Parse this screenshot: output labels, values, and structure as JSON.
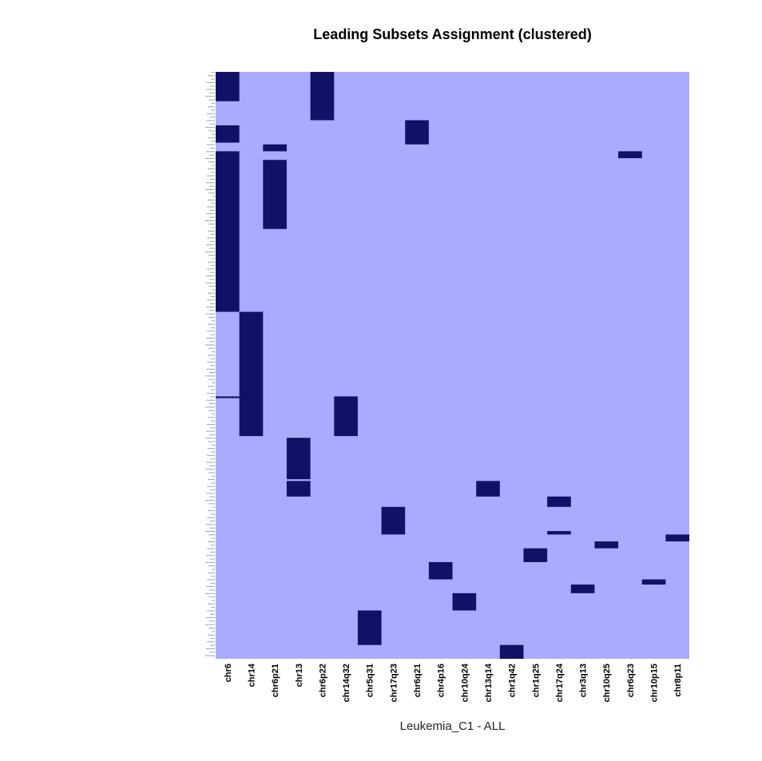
{
  "chart_data": {
    "type": "heatmap",
    "title": "Leading Subsets Assignment (clustered)",
    "xlabel": "Leukemia_C1 - ALL",
    "ylabel": "",
    "n_rows": 340,
    "columns": [
      "chr6",
      "chr14",
      "chr6p21",
      "chr13",
      "chr6p22",
      "chr14q32",
      "chr5q31",
      "chr17q23",
      "chr6q21",
      "chr4p16",
      "chr10q24",
      "chr13q14",
      "chr1q42",
      "chr1q25",
      "chr17q24",
      "chr3q13",
      "chr10q25",
      "chr6q23",
      "chr10p15",
      "chr8p11"
    ],
    "cell_values": {
      "0": "not in leading subset",
      "1": "in leading subset"
    },
    "colors": {
      "background": "#aaaaff",
      "member": "#111166"
    },
    "member_blocks": [
      {
        "column": "chr6",
        "row_start": 0,
        "row_end": 17
      },
      {
        "column": "chr6",
        "row_start": 31,
        "row_end": 41
      },
      {
        "column": "chr6",
        "row_start": 46,
        "row_end": 139
      },
      {
        "column": "chr6",
        "row_start": 188,
        "row_end": 189
      },
      {
        "column": "chr6p22",
        "row_start": 0,
        "row_end": 28
      },
      {
        "column": "chr6q21",
        "row_start": 28,
        "row_end": 42
      },
      {
        "column": "chr6p21",
        "row_start": 42,
        "row_end": 46
      },
      {
        "column": "chr6p21",
        "row_start": 51,
        "row_end": 91
      },
      {
        "column": "chr6q23",
        "row_start": 46,
        "row_end": 50
      },
      {
        "column": "chr14",
        "row_start": 139,
        "row_end": 211
      },
      {
        "column": "chr14q32",
        "row_start": 188,
        "row_end": 211
      },
      {
        "column": "chr13",
        "row_start": 212,
        "row_end": 236
      },
      {
        "column": "chr13",
        "row_start": 237,
        "row_end": 246
      },
      {
        "column": "chr13q14",
        "row_start": 237,
        "row_end": 246
      },
      {
        "column": "chr17q24",
        "row_start": 246,
        "row_end": 252
      },
      {
        "column": "chr17q24",
        "row_start": 266,
        "row_end": 268
      },
      {
        "column": "chr17q23",
        "row_start": 252,
        "row_end": 268
      },
      {
        "column": "chr8p11",
        "row_start": 268,
        "row_end": 272
      },
      {
        "column": "chr10q25",
        "row_start": 272,
        "row_end": 276
      },
      {
        "column": "chr1q25",
        "row_start": 276,
        "row_end": 284
      },
      {
        "column": "chr4p16",
        "row_start": 284,
        "row_end": 294
      },
      {
        "column": "chr10p15",
        "row_start": 294,
        "row_end": 297
      },
      {
        "column": "chr3q13",
        "row_start": 297,
        "row_end": 302
      },
      {
        "column": "chr10q24",
        "row_start": 302,
        "row_end": 312
      },
      {
        "column": "chr5q31",
        "row_start": 312,
        "row_end": 332
      },
      {
        "column": "chr1q42",
        "row_start": 332,
        "row_end": 340
      }
    ],
    "grid": false,
    "legend": "none"
  }
}
